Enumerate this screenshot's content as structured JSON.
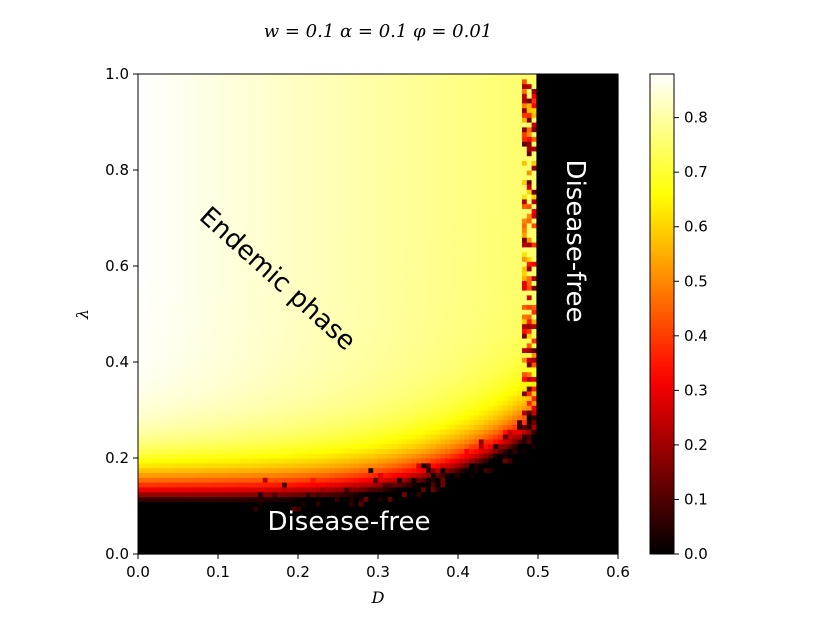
{
  "chart_data": {
    "type": "heatmap",
    "title": "w = 0.1 α = 0.1 φ = 0.01",
    "xlabel": "D",
    "ylabel": "λ",
    "xlim": [
      0.0,
      0.6
    ],
    "ylim": [
      0.0,
      1.0
    ],
    "x_ticks": [
      {
        "value": 0.0,
        "label": "0.0"
      },
      {
        "value": 0.1,
        "label": "0.1"
      },
      {
        "value": 0.2,
        "label": "0.2"
      },
      {
        "value": 0.3,
        "label": "0.3"
      },
      {
        "value": 0.4,
        "label": "0.4"
      },
      {
        "value": 0.5,
        "label": "0.5"
      },
      {
        "value": 0.6,
        "label": "0.6"
      }
    ],
    "y_ticks": [
      {
        "value": 0.0,
        "label": "0.0"
      },
      {
        "value": 0.2,
        "label": "0.2"
      },
      {
        "value": 0.4,
        "label": "0.4"
      },
      {
        "value": 0.6,
        "label": "0.6"
      },
      {
        "value": 0.8,
        "label": "0.8"
      },
      {
        "value": 1.0,
        "label": "1.0"
      }
    ],
    "colorbar": {
      "colormap": "hot",
      "range": [
        0.0,
        0.88
      ],
      "ticks": [
        {
          "value": 0.0,
          "label": "0.0"
        },
        {
          "value": 0.1,
          "label": "0.1"
        },
        {
          "value": 0.2,
          "label": "0.2"
        },
        {
          "value": 0.3,
          "label": "0.3"
        },
        {
          "value": 0.4,
          "label": "0.4"
        },
        {
          "value": 0.5,
          "label": "0.5"
        },
        {
          "value": 0.6,
          "label": "0.6"
        },
        {
          "value": 0.7,
          "label": "0.7"
        },
        {
          "value": 0.8,
          "label": "0.8"
        }
      ]
    },
    "grid": false,
    "grid_resolution": {
      "nx": 100,
      "ny": 100
    },
    "phase_boundary": {
      "critical_D": 0.5,
      "lambda_threshold_at_D0": 0.11,
      "lambda_threshold_near_critical_D": 0.25
    },
    "annotations": [
      {
        "name": "endemic",
        "text": "Endemic phase",
        "color": "#000000"
      },
      {
        "name": "disease-free-bottom",
        "text": "Disease-free",
        "color": "#ffffff"
      },
      {
        "name": "disease-free-right",
        "text": "Disease-free",
        "color": "#ffffff"
      }
    ]
  }
}
